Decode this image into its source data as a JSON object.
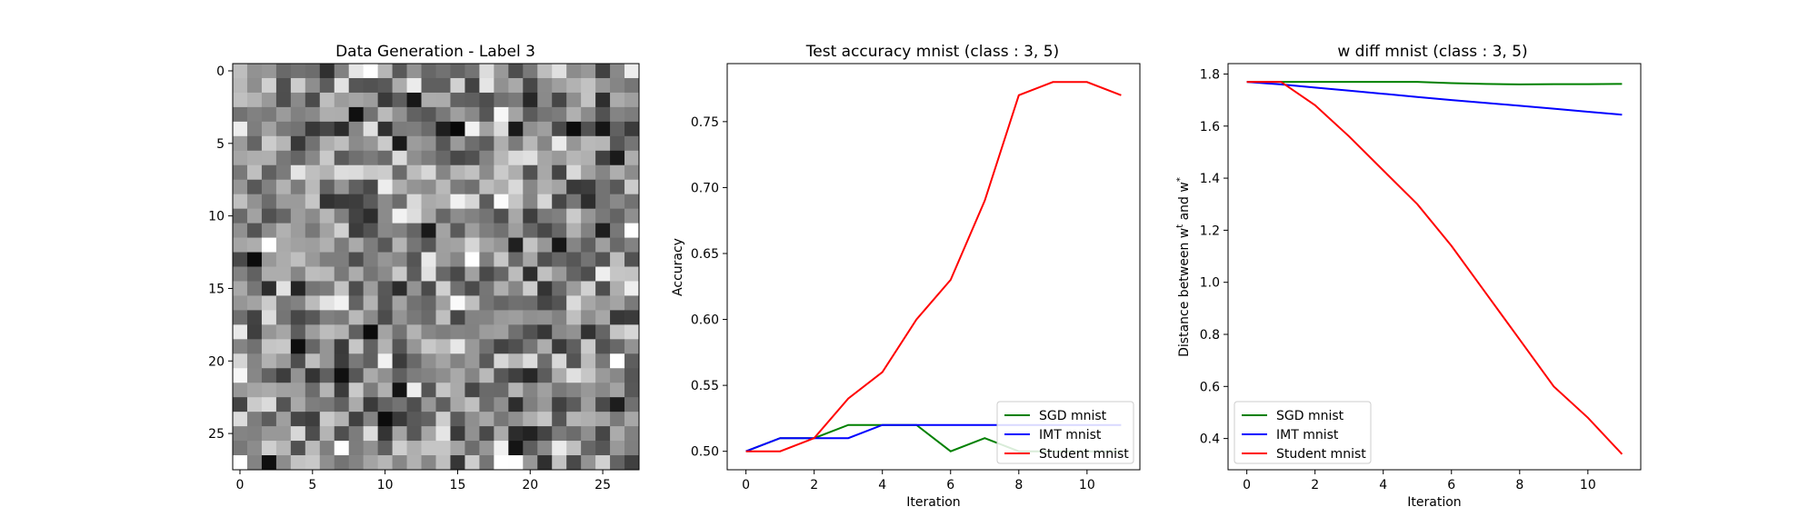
{
  "chart_data": [
    {
      "type": "heatmap",
      "title": "Data Generation - Label 3",
      "xlabel": "",
      "ylabel": "",
      "xlim": [
        -0.5,
        27.5
      ],
      "ylim": [
        27.5,
        -0.5
      ],
      "x_ticks": [
        0,
        5,
        10,
        15,
        20,
        25
      ],
      "y_ticks": [
        0,
        5,
        10,
        15,
        20,
        25
      ],
      "rows": 28,
      "cols": 28,
      "colormap": "gray",
      "grid": false
    },
    {
      "type": "line",
      "title": "Test accuracy mnist (class : 3, 5)",
      "xlabel": "Iteration",
      "ylabel": "Accuracy",
      "xlim": [
        -0.55,
        11.55
      ],
      "ylim": [
        0.486,
        0.794
      ],
      "x_ticks": [
        0,
        2,
        4,
        6,
        8,
        10
      ],
      "y_ticks": [
        0.5,
        0.55,
        0.6,
        0.65,
        0.7,
        0.75
      ],
      "tick_format": 2,
      "legend_position": "lower-right",
      "grid": false,
      "x": [
        0,
        1,
        2,
        3,
        4,
        5,
        6,
        7,
        8,
        9,
        10,
        11
      ],
      "series": [
        {
          "name": "SGD mnist",
          "color": "#008000",
          "values": [
            0.5,
            0.51,
            0.51,
            0.52,
            0.52,
            0.52,
            0.5,
            0.51,
            0.5,
            0.5,
            0.5,
            0.5
          ]
        },
        {
          "name": "IMT mnist",
          "color": "#0000ff",
          "values": [
            0.5,
            0.51,
            0.51,
            0.51,
            0.52,
            0.52,
            0.52,
            0.52,
            0.52,
            0.52,
            0.52,
            0.52
          ]
        },
        {
          "name": "Student mnist",
          "color": "#ff0000",
          "values": [
            0.5,
            0.5,
            0.51,
            0.54,
            0.56,
            0.6,
            0.63,
            0.69,
            0.77,
            0.78,
            0.78,
            0.77
          ]
        }
      ]
    },
    {
      "type": "line",
      "title": "w diff mnist (class : 3, 5)",
      "xlabel": "Iteration",
      "ylabel": "Distance between w",
      "ylabel_sup1": "t",
      "ylabel_mid": " and w",
      "ylabel_sup2": "*",
      "xlim": [
        -0.55,
        11.55
      ],
      "ylim": [
        0.28,
        1.84
      ],
      "x_ticks": [
        0,
        2,
        4,
        6,
        8,
        10
      ],
      "y_ticks": [
        0.4,
        0.6,
        0.8,
        1.0,
        1.2,
        1.4,
        1.6,
        1.8
      ],
      "tick_format": 1,
      "legend_position": "lower-left",
      "grid": false,
      "x": [
        0,
        1,
        2,
        3,
        4,
        5,
        6,
        7,
        8,
        9,
        10,
        11
      ],
      "series": [
        {
          "name": "SGD mnist",
          "color": "#008000",
          "values": [
            1.77,
            1.77,
            1.77,
            1.77,
            1.77,
            1.77,
            1.765,
            1.762,
            1.76,
            1.761,
            1.761,
            1.762
          ]
        },
        {
          "name": "IMT mnist",
          "color": "#0000ff",
          "values": [
            1.77,
            1.76,
            1.748,
            1.736,
            1.724,
            1.712,
            1.7,
            1.689,
            1.678,
            1.667,
            1.655,
            1.644
          ]
        },
        {
          "name": "Student mnist",
          "color": "#ff0000",
          "values": [
            1.77,
            1.77,
            1.68,
            1.56,
            1.43,
            1.3,
            1.14,
            0.96,
            0.78,
            0.6,
            0.48,
            0.34
          ]
        }
      ]
    }
  ]
}
